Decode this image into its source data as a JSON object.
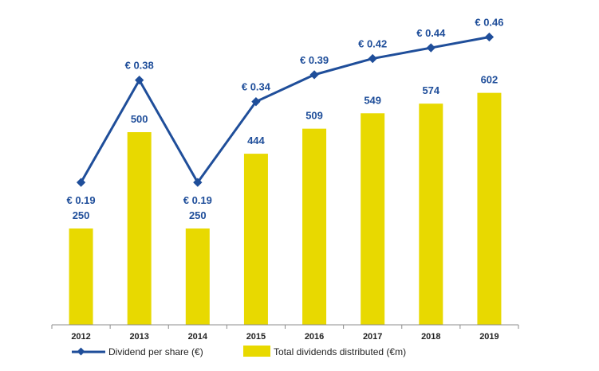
{
  "chart_data": {
    "type": "bar",
    "title": "",
    "xlabel": "",
    "ylabel": "",
    "categories": [
      "2012",
      "2013",
      "2014",
      "2015",
      "2016",
      "2017",
      "2018",
      "2019"
    ],
    "series": [
      {
        "name": "Total dividends distributed (€m)",
        "type": "bar",
        "axis": "left",
        "color": "#e8d900",
        "values": [
          250,
          500,
          250,
          444,
          509,
          549,
          574,
          602
        ],
        "labels": [
          "250",
          "500",
          "250",
          "444",
          "509",
          "549",
          "574",
          "602"
        ]
      },
      {
        "name": "Dividend per share (€)",
        "type": "line",
        "axis": "right",
        "color": "#1f4e9a",
        "values": [
          0.19,
          0.38,
          0.19,
          0.34,
          0.39,
          0.42,
          0.44,
          0.46
        ],
        "labels": [
          "€ 0.19",
          "€ 0.38",
          "€ 0.19",
          "€ 0.34",
          "€ 0.39",
          "€ 0.42",
          "€ 0.44",
          "€ 0.46"
        ]
      }
    ],
    "bar_axis_range": [
      0,
      750
    ],
    "line_axis_range": [
      0.1,
      0.48
    ],
    "grid": false,
    "legend_position": "bottom"
  }
}
